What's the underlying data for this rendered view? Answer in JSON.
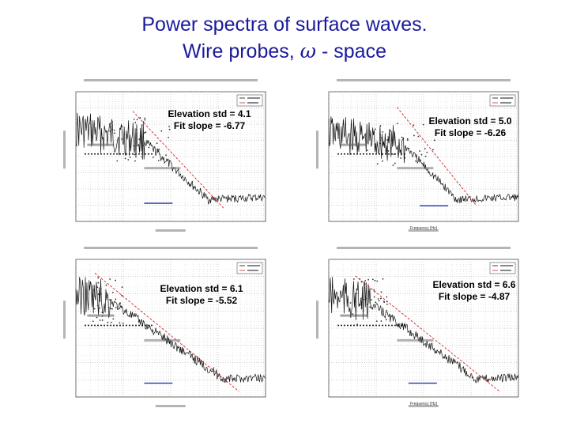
{
  "title": {
    "line1": "Power spectra of surface waves.",
    "line2_prefix": "Wire probes, ",
    "line2_symbol": "ω",
    "line2_suffix": " - space"
  },
  "colors": {
    "title": "#1a1a9e",
    "fit_line": "#cc2a2a",
    "marker": "#2233aa",
    "data": "#111111"
  },
  "chart_data": [
    {
      "type": "line",
      "scale": "log-log",
      "annotations": [
        "Elevation std = 4.1",
        "Fit slope = -6.77"
      ],
      "elevation_std": 4.1,
      "fit_slope": -6.77,
      "xlabel": "",
      "ylabel": ""
    },
    {
      "type": "line",
      "scale": "log-log",
      "annotations": [
        "Elevation std = 5.0",
        "Fit slope = -6.26"
      ],
      "elevation_std": 5.0,
      "fit_slope": -6.26,
      "xlabel": "Frequency [Hz]",
      "ylabel": ""
    },
    {
      "type": "line",
      "scale": "log-log",
      "annotations": [
        "Elevation std = 6.1",
        "Fit slope = -5.52"
      ],
      "elevation_std": 6.1,
      "fit_slope": -5.52,
      "xlabel": "",
      "ylabel": ""
    },
    {
      "type": "line",
      "scale": "log-log",
      "annotations": [
        "Elevation std = 6.6",
        "Fit slope = -4.87"
      ],
      "elevation_std": 6.6,
      "fit_slope": -4.87,
      "xlabel": "Frequency [Hz]",
      "ylabel": ""
    }
  ]
}
